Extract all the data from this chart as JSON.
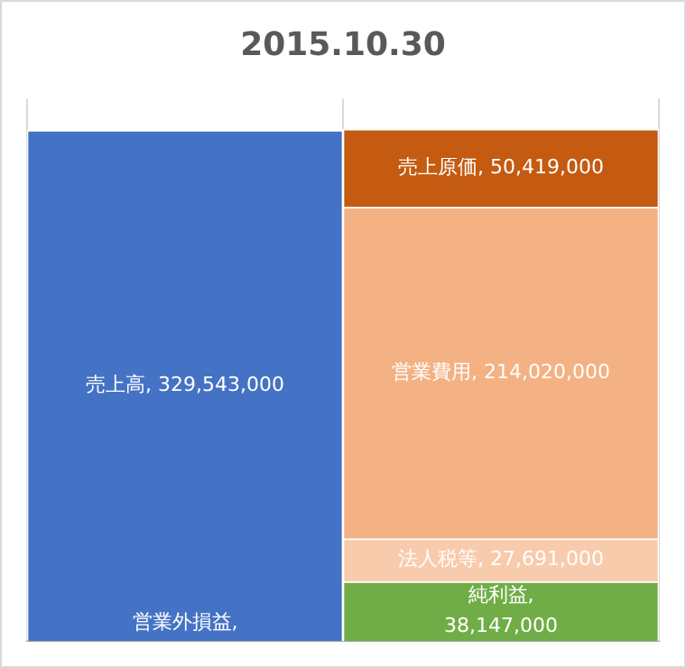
{
  "chart_data": {
    "type": "bar",
    "title": "2015.10.30",
    "stacked": true,
    "categories": [
      null,
      null
    ],
    "grid": "x",
    "tick_labels": false,
    "legend": false,
    "series": [
      {
        "name": "営業外損益",
        "color": "#4472c4",
        "values": [
          0,
          null
        ],
        "value_labels": [
          ",",
          null
        ]
      },
      {
        "name": "売上高",
        "color": "#4472c4",
        "values": [
          329543000,
          null
        ],
        "value_labels": [
          ", 329,543,000",
          null
        ]
      },
      {
        "name": "純利益",
        "color": "#70ad47",
        "values": [
          null,
          38147000
        ],
        "value_labels": [
          null,
          ", 38,147,000"
        ]
      },
      {
        "name": "法人税等",
        "color": "#f8cbad",
        "values": [
          null,
          27691000
        ],
        "value_labels": [
          null,
          ", 27,691,000"
        ]
      },
      {
        "name": "営業費用",
        "color": "#f4b183",
        "values": [
          null,
          214020000
        ],
        "value_labels": [
          null,
          ", 214,020,000"
        ]
      },
      {
        "name": "売上原価",
        "color": "#c55a11",
        "values": [
          null,
          50419000
        ],
        "value_labels": [
          null,
          ", 50,419,000"
        ]
      }
    ]
  }
}
